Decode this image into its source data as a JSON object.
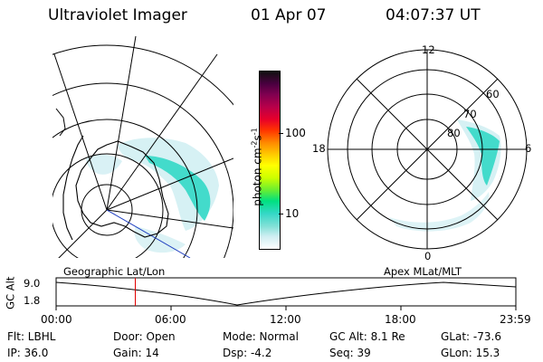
{
  "header": {
    "instrument": "Ultraviolet Imager",
    "date": "01 Apr 07",
    "time": "04:07:37 UT"
  },
  "colorbar": {
    "unit_label": "photon cm",
    "unit_exp1": "-2",
    "unit_s": "s",
    "unit_exp2": "-1",
    "ticks": [
      "100",
      "10"
    ],
    "colors": [
      "#ffffff",
      "#cfeef2",
      "#7fe0d6",
      "#33d8c6",
      "#00e080",
      "#66ee33",
      "#ccff00",
      "#ffff00",
      "#ffcc00",
      "#ff8800",
      "#ff3300",
      "#e8002a",
      "#b8004a",
      "#800050",
      "#4a0040",
      "#101010"
    ]
  },
  "polar_plot": {
    "mlt_labels": {
      "top": "12",
      "right": "6",
      "bottom": "0",
      "left": "18"
    },
    "lat_labels": [
      "60",
      "70",
      "80"
    ]
  },
  "timeline": {
    "left_title": "Geographic Lat/Lon",
    "right_title": "Apex  MLat/MLT",
    "y_axis_label": "GC Alt",
    "y_ticks": [
      "9.0",
      "1.8"
    ],
    "x_ticks": [
      "00:00",
      "06:00",
      "12:00",
      "18:00",
      "23:59"
    ],
    "current_marker_hours": 4.13,
    "marker_color": "#e00000"
  },
  "footer": {
    "filter": "Flt: LBHL",
    "ip": "IP: 36.0",
    "door": "Door: Open",
    "gain": "Gain: 14",
    "mode": "Mode: Normal",
    "dsp": "Dsp:    -4.2",
    "gc_alt": "GC Alt: 8.1 Re",
    "seq": "Seq: 39",
    "glat": "GLat:  -73.6",
    "glon": "GLon:   15.3"
  }
}
